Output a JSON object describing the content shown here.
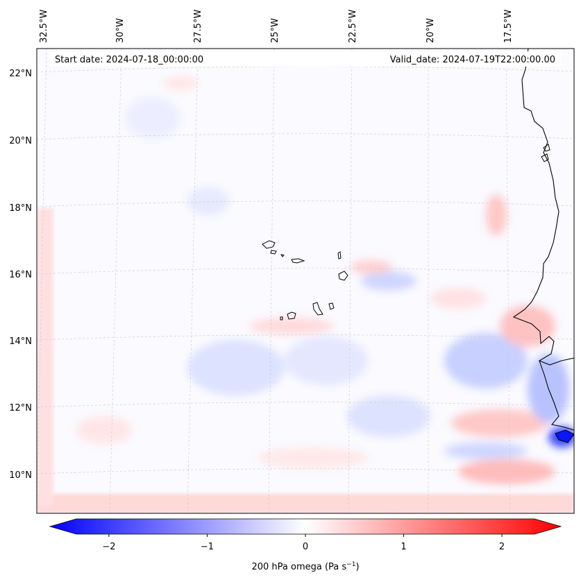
{
  "map": {
    "start_date": "Start date: 2024-07-18_00:00:00",
    "valid_date": "Valid_date: 2024-07-19T22:00:00.00",
    "lon_labels": [
      "32.5°W",
      "30°W",
      "27.5°W",
      "25°W",
      "22.5°W",
      "20°W",
      "17.5°W"
    ],
    "lat_labels": [
      "22°N",
      "20°N",
      "18°N",
      "16°N",
      "14°N",
      "12°N",
      "10°N"
    ],
    "colorbar": {
      "label": "200 hPa omega (Pa s",
      "label_sup": "−1",
      "label_end": ")",
      "ticks": [
        "−2",
        "−1",
        "0",
        "1",
        "2"
      ],
      "min": -2.6,
      "max": 2.6
    }
  }
}
